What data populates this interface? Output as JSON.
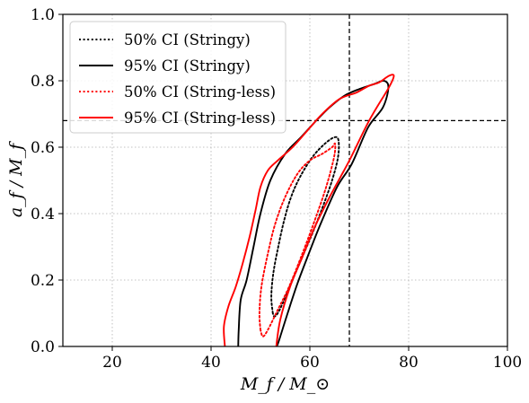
{
  "chart_data": {
    "type": "line",
    "title": "",
    "xlabel": "M_f / M_⊙",
    "ylabel": "a_f / M_f",
    "xlim": [
      10,
      100
    ],
    "ylim": [
      0.0,
      1.0
    ],
    "xticks": [
      20,
      40,
      60,
      80,
      100
    ],
    "xtick_labels": [
      "20",
      "40",
      "60",
      "80",
      "100"
    ],
    "yticks": [
      0.0,
      0.2,
      0.4,
      0.6,
      0.8,
      1.0
    ],
    "ytick_labels": [
      "0.0",
      "0.2",
      "0.4",
      "0.6",
      "0.8",
      "1.0"
    ],
    "grid": true,
    "legend_position": "top-left",
    "reference_lines": {
      "x": 68.0,
      "y": 0.68,
      "style": "dashed",
      "color": "#000000"
    },
    "series": [
      {
        "name": "50% CI (Stringy)",
        "color": "#000000",
        "dash": "dotted",
        "points": [
          [
            52.5,
            0.1
          ],
          [
            52.2,
            0.15
          ],
          [
            52.6,
            0.22
          ],
          [
            53.6,
            0.3
          ],
          [
            54.8,
            0.38
          ],
          [
            56.2,
            0.45
          ],
          [
            58.0,
            0.51
          ],
          [
            60.5,
            0.57
          ],
          [
            63.0,
            0.61
          ],
          [
            65.0,
            0.63
          ],
          [
            65.8,
            0.62
          ],
          [
            65.7,
            0.57
          ],
          [
            64.5,
            0.5
          ],
          [
            62.6,
            0.42
          ],
          [
            60.5,
            0.34
          ],
          [
            58.2,
            0.26
          ],
          [
            56.2,
            0.19
          ],
          [
            54.5,
            0.13
          ],
          [
            53.5,
            0.1
          ],
          [
            52.8,
            0.09
          ],
          [
            52.5,
            0.1
          ]
        ]
      },
      {
        "name": "95% CI (Stringy)",
        "color": "#000000",
        "dash": "solid",
        "points": [
          [
            45.5,
            0.0
          ],
          [
            45.6,
            0.05
          ],
          [
            46.0,
            0.14
          ],
          [
            47.2,
            0.2
          ],
          [
            48.6,
            0.3
          ],
          [
            50.0,
            0.4
          ],
          [
            52.0,
            0.5
          ],
          [
            55.0,
            0.58
          ],
          [
            58.2,
            0.63
          ],
          [
            61.3,
            0.68
          ],
          [
            64.0,
            0.72
          ],
          [
            67.0,
            0.755
          ],
          [
            70.0,
            0.775
          ],
          [
            73.0,
            0.79
          ],
          [
            75.0,
            0.8
          ],
          [
            75.9,
            0.78
          ],
          [
            74.8,
            0.72
          ],
          [
            71.8,
            0.66
          ],
          [
            68.5,
            0.55
          ],
          [
            65.5,
            0.48
          ],
          [
            62.2,
            0.37
          ],
          [
            59.8,
            0.28
          ],
          [
            57.5,
            0.19
          ],
          [
            55.5,
            0.1
          ],
          [
            53.8,
            0.02
          ],
          [
            53.3,
            0.0
          ]
        ]
      },
      {
        "name": "50% CI (String-less)",
        "color": "#ff0000",
        "dash": "dotted",
        "points": [
          [
            50.0,
            0.05
          ],
          [
            49.8,
            0.1
          ],
          [
            50.2,
            0.18
          ],
          [
            51.5,
            0.28
          ],
          [
            53.0,
            0.37
          ],
          [
            55.0,
            0.45
          ],
          [
            57.5,
            0.52
          ],
          [
            60.0,
            0.56
          ],
          [
            62.5,
            0.58
          ],
          [
            64.5,
            0.6
          ],
          [
            65.1,
            0.61
          ],
          [
            64.9,
            0.57
          ],
          [
            63.3,
            0.48
          ],
          [
            61.0,
            0.38
          ],
          [
            58.5,
            0.28
          ],
          [
            55.8,
            0.18
          ],
          [
            53.5,
            0.11
          ],
          [
            51.5,
            0.05
          ],
          [
            50.5,
            0.03
          ],
          [
            50.0,
            0.05
          ]
        ]
      },
      {
        "name": "95% CI (String-less)",
        "color": "#ff0000",
        "dash": "solid",
        "points": [
          [
            42.8,
            0.0
          ],
          [
            42.6,
            0.06
          ],
          [
            43.5,
            0.12
          ],
          [
            45.0,
            0.18
          ],
          [
            46.4,
            0.25
          ],
          [
            47.8,
            0.33
          ],
          [
            49.0,
            0.41
          ],
          [
            50.0,
            0.48
          ],
          [
            51.5,
            0.53
          ],
          [
            53.5,
            0.56
          ],
          [
            56.5,
            0.6
          ],
          [
            59.5,
            0.65
          ],
          [
            62.5,
            0.7
          ],
          [
            66.0,
            0.745
          ],
          [
            69.5,
            0.765
          ],
          [
            72.0,
            0.785
          ],
          [
            74.0,
            0.795
          ],
          [
            76.0,
            0.815
          ],
          [
            77.0,
            0.815
          ],
          [
            76.0,
            0.78
          ],
          [
            72.0,
            0.68
          ],
          [
            68.0,
            0.56
          ],
          [
            64.0,
            0.45
          ],
          [
            61.0,
            0.36
          ],
          [
            58.5,
            0.27
          ],
          [
            56.0,
            0.18
          ],
          [
            54.0,
            0.08
          ],
          [
            53.2,
            0.0
          ]
        ]
      }
    ]
  }
}
